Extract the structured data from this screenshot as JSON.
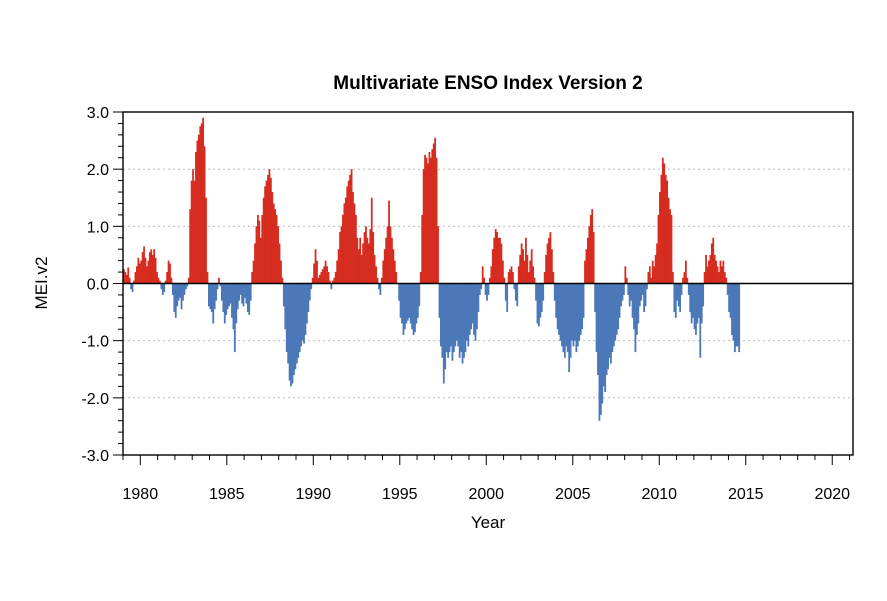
{
  "chart_data": {
    "type": "bar",
    "title": "Multivariate ENSO Index Version 2",
    "xlabel": "Year",
    "ylabel": "MEI.v2",
    "xlim": [
      1979,
      2021.2
    ],
    "ylim": [
      -3.0,
      3.0
    ],
    "y_ticks": [
      "-3.0",
      "-2.0",
      "-1.0",
      "0.0",
      "1.0",
      "2.0",
      "3.0"
    ],
    "x_ticks": [
      "1980",
      "1985",
      "1990",
      "1995",
      "2000",
      "2005",
      "2010",
      "2015",
      "2020"
    ],
    "grid": "horizontal dashed",
    "colors": {
      "positive": "#d62d20",
      "negative": "#4a78b8",
      "zero_line": "#000000"
    },
    "series": [
      {
        "x_start": 1979.0,
        "step": 0.0833,
        "values": [
          0.25,
          0.2,
          0.15,
          0.28,
          0.1,
          -0.1,
          -0.15,
          0.05,
          0.2,
          0.3,
          0.45,
          0.35,
          0.4,
          0.55,
          0.65,
          0.45,
          0.3,
          0.4,
          0.55,
          0.6,
          0.5,
          0.6,
          0.45,
          0.2,
          0.1,
          0.05,
          -0.1,
          -0.2,
          -0.15,
          0.05,
          0.2,
          0.4,
          0.35,
          0.1,
          -0.2,
          -0.5,
          -0.6,
          -0.4,
          -0.3,
          -0.25,
          -0.45,
          -0.3,
          -0.2,
          -0.1,
          -0.05,
          0.1,
          1.3,
          1.8,
          2.0,
          1.8,
          2.3,
          2.5,
          2.6,
          2.75,
          2.8,
          2.9,
          2.4,
          1.5,
          0.2,
          -0.4,
          -0.45,
          -0.5,
          -0.7,
          -0.45,
          -0.3,
          -0.1,
          0.1,
          -0.05,
          -0.3,
          -0.5,
          -0.7,
          -0.55,
          -0.45,
          -0.4,
          -0.35,
          -0.6,
          -0.8,
          -1.2,
          -0.7,
          -0.45,
          -0.3,
          -0.2,
          -0.35,
          -0.4,
          -0.25,
          -0.35,
          -0.5,
          -0.55,
          -0.3,
          0.2,
          0.4,
          0.7,
          1.0,
          1.2,
          1.1,
          0.8,
          1.2,
          1.5,
          1.7,
          1.8,
          1.9,
          2.0,
          1.85,
          1.6,
          1.4,
          1.3,
          1.2,
          1.0,
          0.7,
          0.4,
          0.1,
          -0.4,
          -0.8,
          -1.2,
          -1.4,
          -1.7,
          -1.8,
          -1.75,
          -1.6,
          -1.5,
          -1.4,
          -1.3,
          -1.2,
          -1.1,
          -1.0,
          -1.05,
          -0.9,
          -0.7,
          -0.5,
          -0.3,
          -0.1,
          0.1,
          0.35,
          0.6,
          0.4,
          0.1,
          0.15,
          0.2,
          0.25,
          0.3,
          0.4,
          0.3,
          0.2,
          0.05,
          -0.1,
          0.05,
          0.1,
          0.2,
          0.4,
          0.6,
          0.9,
          1.0,
          1.2,
          1.4,
          1.5,
          1.7,
          1.8,
          1.9,
          2.0,
          1.6,
          1.4,
          1.2,
          0.8,
          0.6,
          0.8,
          0.5,
          0.7,
          0.9,
          1.0,
          0.8,
          0.7,
          0.95,
          1.5,
          0.9,
          0.5,
          0.3,
          0.1,
          -0.1,
          -0.2,
          0.1,
          0.4,
          0.6,
          0.8,
          1.0,
          1.45,
          1.0,
          0.8,
          0.6,
          0.4,
          0.2,
          0.0,
          -0.3,
          -0.6,
          -0.7,
          -0.9,
          -0.8,
          -0.7,
          -0.65,
          -0.6,
          -0.7,
          -0.8,
          -0.9,
          -0.85,
          -0.7,
          -0.6,
          -0.4,
          0.2,
          1.2,
          2.0,
          2.25,
          2.2,
          2.1,
          2.3,
          2.2,
          2.35,
          2.45,
          2.55,
          2.2,
          1.0,
          -0.6,
          -1.1,
          -1.3,
          -1.75,
          -1.5,
          -1.2,
          -1.3,
          -1.2,
          -1.1,
          -1.35,
          -1.2,
          -1.1,
          -1.0,
          -1.1,
          -1.3,
          -1.2,
          -1.4,
          -1.3,
          -1.2,
          -1.0,
          -1.1,
          -0.9,
          -0.8,
          -0.7,
          -0.9,
          -1.0,
          -0.8,
          -0.5,
          -0.2,
          -0.1,
          0.3,
          0.1,
          -0.2,
          -0.3,
          -0.2,
          0.1,
          0.3,
          0.6,
          0.8,
          0.95,
          0.9,
          0.8,
          0.8,
          0.7,
          0.4,
          0.1,
          -0.3,
          -0.5,
          0.2,
          0.25,
          0.3,
          0.2,
          -0.1,
          -0.3,
          -0.4,
          0.3,
          0.5,
          0.7,
          0.6,
          0.4,
          0.8,
          0.5,
          0.2,
          0.4,
          0.6,
          0.3,
          0.1,
          -0.3,
          -0.7,
          -0.75,
          -0.6,
          -0.5,
          -0.3,
          0.2,
          0.5,
          0.7,
          0.8,
          0.9,
          0.6,
          0.2,
          -0.3,
          -0.6,
          -0.8,
          -0.9,
          -1.0,
          -1.1,
          -1.2,
          -1.3,
          -1.1,
          -1.2,
          -1.55,
          -1.3,
          -1.0,
          -1.1,
          -1.0,
          -1.2,
          -1.1,
          -1.0,
          -0.9,
          -0.8,
          -0.6,
          0.4,
          0.6,
          0.8,
          1.0,
          1.2,
          1.3,
          0.9,
          -0.5,
          -1.2,
          -1.6,
          -2.4,
          -2.3,
          -2.1,
          -1.8,
          -1.9,
          -1.6,
          -1.5,
          -1.3,
          -1.4,
          -1.2,
          -1.1,
          -1.0,
          -0.9,
          -0.8,
          -0.6,
          -0.4,
          -0.3,
          -0.2,
          0.3,
          0.1,
          -0.2,
          -0.4,
          -0.3,
          -0.6,
          -0.8,
          -1.2,
          -0.9,
          -0.7,
          -0.4,
          -0.3,
          -0.2,
          -0.5,
          -0.4,
          -0.1,
          0.2,
          0.3,
          0.1,
          0.4,
          0.3,
          0.5,
          0.7,
          1.2,
          1.6,
          1.9,
          2.2,
          2.1,
          1.9,
          1.8,
          1.5,
          1.3,
          1.2,
          0.2,
          -0.5,
          -0.6,
          -0.3,
          -0.4,
          -0.5,
          -0.2,
          0.1,
          0.2,
          0.4,
          0.1,
          -0.2,
          -0.5,
          -0.7,
          -0.6,
          -0.8,
          -0.9,
          -0.7,
          -0.6,
          -1.3,
          -0.7,
          -0.4,
          0.2,
          0.5,
          0.3,
          0.4,
          0.5,
          0.7,
          0.8,
          0.5,
          0.4,
          0.3,
          0.2,
          0.4,
          0.3,
          0.4,
          0.2,
          0.1,
          -0.2,
          -0.5,
          -0.6,
          -0.9,
          -1.0,
          -1.2,
          -1.1,
          -1.1,
          -1.2
        ]
      }
    ]
  }
}
